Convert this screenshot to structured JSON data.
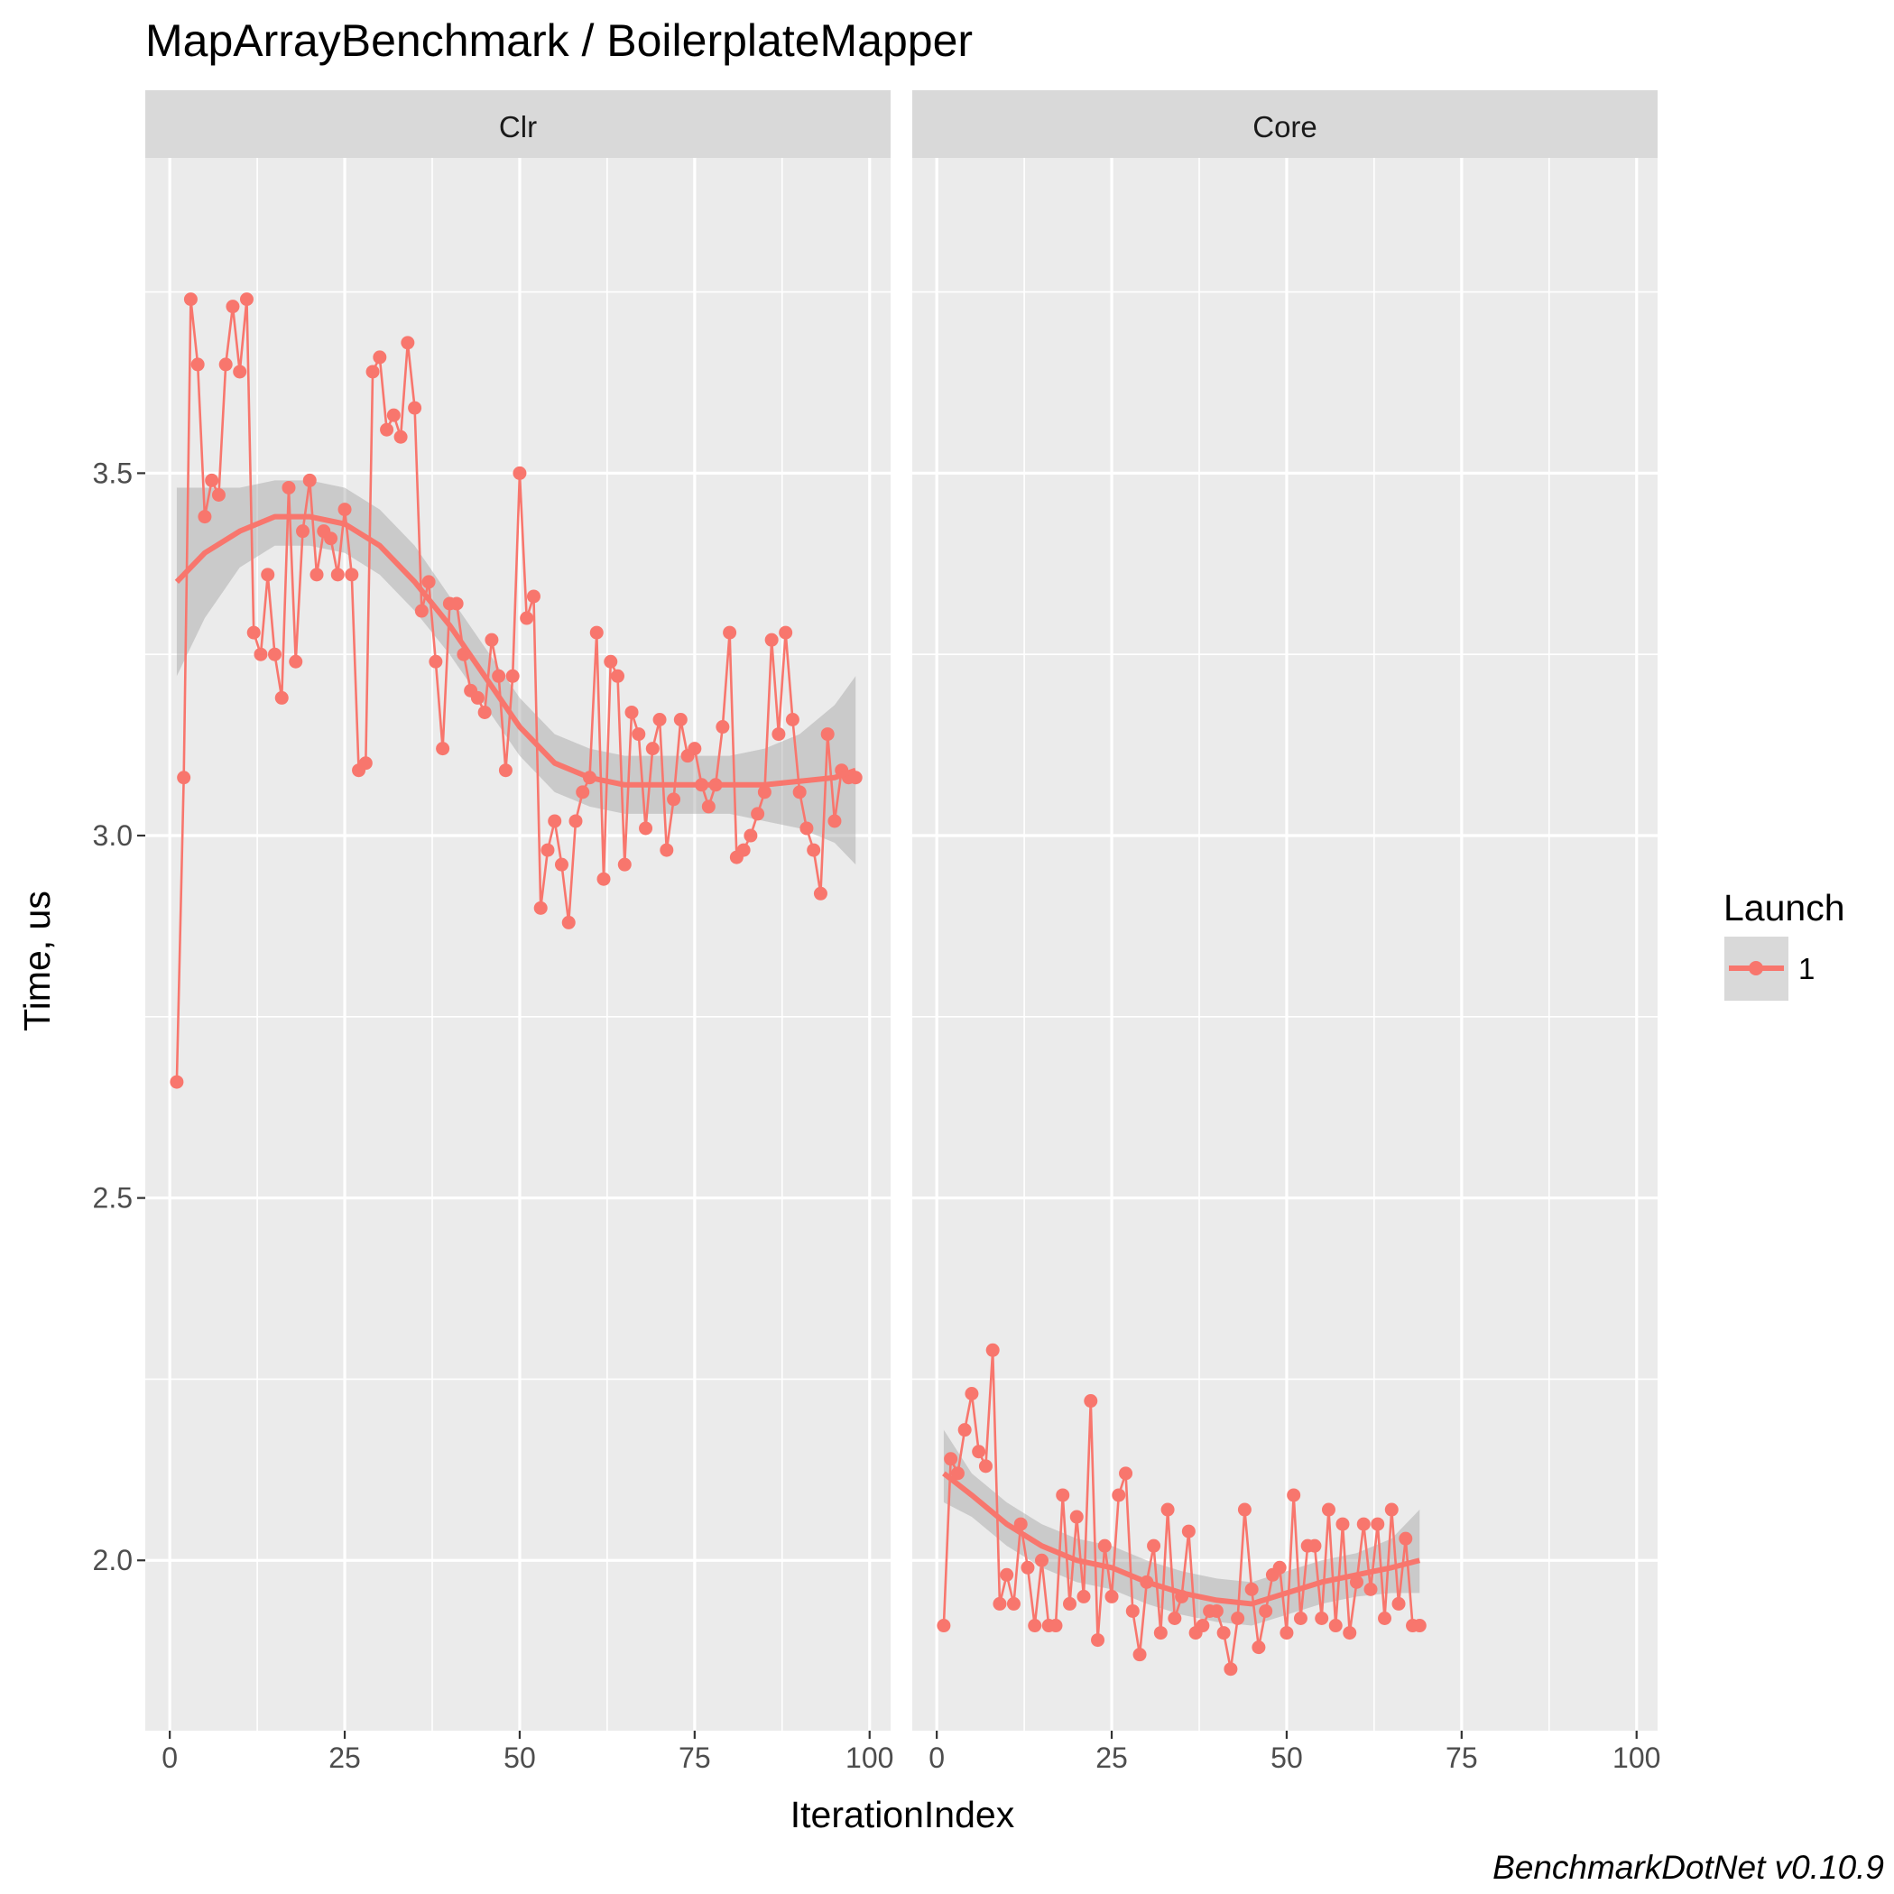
{
  "chart_data": {
    "type": "line",
    "title": "MapArrayBenchmark / BoilerplateMapper",
    "caption": "BenchmarkDotNet v0.10.9",
    "xlabel": "IterationIndex",
    "ylabel": "Time, us",
    "xlim": [
      -3.5,
      103
    ],
    "ylim": [
      1.765,
      3.935
    ],
    "x_ticks": [
      0,
      25,
      50,
      75,
      100
    ],
    "x_tick_labels": [
      "0",
      "25",
      "50",
      "75",
      "100"
    ],
    "y_ticks": [
      2.0,
      2.5,
      3.0,
      3.5
    ],
    "y_tick_labels": [
      "2.0",
      "2.5",
      "3.0",
      "3.5"
    ],
    "grid": true,
    "smooth": "loess with confidence band",
    "colors": {
      "series": "#f8766d",
      "band": "#999999",
      "panel": "#ebebeb",
      "strip": "#d9d9d9"
    },
    "legend": {
      "title": "Launch",
      "position": "right",
      "entries": [
        "1"
      ]
    },
    "panels": [
      {
        "label": "Clr",
        "series": [
          {
            "name": "1",
            "x": [
              1,
              2,
              3,
              4,
              5,
              6,
              7,
              8,
              9,
              10,
              11,
              12,
              13,
              14,
              15,
              16,
              17,
              18,
              19,
              20,
              21,
              22,
              23,
              24,
              25,
              26,
              27,
              28,
              29,
              30,
              31,
              32,
              33,
              34,
              35,
              36,
              37,
              38,
              39,
              40,
              41,
              42,
              43,
              44,
              45,
              46,
              47,
              48,
              49,
              50,
              51,
              52,
              53,
              54,
              55,
              56,
              57,
              58,
              59,
              60,
              61,
              62,
              63,
              64,
              65,
              66,
              67,
              68,
              69,
              70,
              71,
              72,
              73,
              74,
              75,
              76,
              77,
              78,
              79,
              80,
              81,
              82,
              83,
              84,
              85,
              86,
              87,
              88,
              89,
              90,
              91,
              92,
              93,
              94,
              95,
              96,
              97,
              98
            ],
            "values": [
              2.66,
              3.08,
              3.74,
              3.65,
              3.44,
              3.49,
              3.47,
              3.65,
              3.73,
              3.64,
              3.74,
              3.28,
              3.25,
              3.36,
              3.25,
              3.19,
              3.48,
              3.24,
              3.42,
              3.49,
              3.36,
              3.42,
              3.41,
              3.36,
              3.45,
              3.36,
              3.09,
              3.1,
              3.64,
              3.66,
              3.56,
              3.58,
              3.55,
              3.68,
              3.59,
              3.31,
              3.35,
              3.24,
              3.12,
              3.32,
              3.32,
              3.25,
              3.2,
              3.19,
              3.17,
              3.27,
              3.22,
              3.09,
              3.22,
              3.5,
              3.3,
              3.33,
              2.9,
              2.98,
              3.02,
              2.96,
              2.88,
              3.02,
              3.06,
              3.08,
              3.28,
              2.94,
              3.24,
              3.22,
              2.96,
              3.17,
              3.14,
              3.01,
              3.12,
              3.16,
              2.98,
              3.05,
              3.16,
              3.11,
              3.12,
              3.07,
              3.04,
              3.07,
              3.15,
              3.28,
              2.97,
              2.98,
              3.0,
              3.03,
              3.06,
              3.27,
              3.14,
              3.28,
              3.16,
              3.06,
              3.01,
              2.98,
              2.92,
              3.14,
              3.02,
              3.09,
              3.08,
              3.08
            ]
          }
        ],
        "smooth": {
          "x": [
            1,
            5,
            10,
            15,
            20,
            25,
            30,
            35,
            40,
            45,
            50,
            55,
            60,
            65,
            70,
            75,
            80,
            85,
            90,
            95,
            98
          ],
          "y": [
            3.35,
            3.39,
            3.42,
            3.44,
            3.44,
            3.43,
            3.4,
            3.35,
            3.29,
            3.22,
            3.15,
            3.1,
            3.08,
            3.07,
            3.07,
            3.07,
            3.07,
            3.07,
            3.075,
            3.08,
            3.09
          ],
          "lower": [
            3.22,
            3.3,
            3.37,
            3.4,
            3.4,
            3.39,
            3.36,
            3.31,
            3.25,
            3.18,
            3.11,
            3.06,
            3.04,
            3.03,
            3.03,
            3.03,
            3.03,
            3.02,
            3.01,
            2.99,
            2.96
          ],
          "upper": [
            3.48,
            3.48,
            3.48,
            3.49,
            3.49,
            3.48,
            3.45,
            3.4,
            3.33,
            3.26,
            3.19,
            3.14,
            3.12,
            3.11,
            3.11,
            3.11,
            3.11,
            3.12,
            3.14,
            3.18,
            3.22
          ]
        }
      },
      {
        "label": "Core",
        "series": [
          {
            "name": "1",
            "x": [
              1,
              2,
              3,
              4,
              5,
              6,
              7,
              8,
              9,
              10,
              11,
              12,
              13,
              14,
              15,
              16,
              17,
              18,
              19,
              20,
              21,
              22,
              23,
              24,
              25,
              26,
              27,
              28,
              29,
              30,
              31,
              32,
              33,
              34,
              35,
              36,
              37,
              38,
              39,
              40,
              41,
              42,
              43,
              44,
              45,
              46,
              47,
              48,
              49,
              50,
              51,
              52,
              53,
              54,
              55,
              56,
              57,
              58,
              59,
              60,
              61,
              62,
              63,
              64,
              65,
              66,
              67,
              68,
              69
            ],
            "values": [
              1.91,
              2.14,
              2.12,
              2.18,
              2.23,
              2.15,
              2.13,
              2.29,
              1.94,
              1.98,
              1.94,
              2.05,
              1.99,
              1.91,
              2.0,
              1.91,
              1.91,
              2.09,
              1.94,
              2.06,
              1.95,
              2.22,
              1.89,
              2.02,
              1.95,
              2.09,
              2.12,
              1.93,
              1.87,
              1.97,
              2.02,
              1.9,
              2.07,
              1.92,
              1.95,
              2.04,
              1.9,
              1.91,
              1.93,
              1.93,
              1.9,
              1.85,
              1.92,
              2.07,
              1.96,
              1.88,
              1.93,
              1.98,
              1.99,
              1.9,
              2.09,
              1.92,
              2.02,
              2.02,
              1.92,
              2.07,
              1.91,
              2.05,
              1.9,
              1.97,
              2.05,
              1.96,
              2.05,
              1.92,
              2.07,
              1.94,
              2.03,
              1.91,
              1.91
            ]
          }
        ],
        "smooth": {
          "x": [
            1,
            5,
            10,
            15,
            20,
            25,
            30,
            35,
            40,
            45,
            50,
            55,
            60,
            65,
            69
          ],
          "y": [
            2.12,
            2.09,
            2.05,
            2.02,
            2.0,
            1.99,
            1.97,
            1.955,
            1.945,
            1.94,
            1.955,
            1.97,
            1.98,
            1.99,
            2.0
          ],
          "lower": [
            2.08,
            2.06,
            2.02,
            1.99,
            1.97,
            1.96,
            1.94,
            1.925,
            1.915,
            1.91,
            1.925,
            1.94,
            1.95,
            1.955,
            1.955
          ],
          "upper": [
            2.18,
            2.12,
            2.08,
            2.05,
            2.03,
            2.02,
            2.0,
            1.985,
            1.975,
            1.97,
            1.985,
            2.0,
            2.01,
            2.03,
            2.07
          ]
        }
      }
    ]
  }
}
